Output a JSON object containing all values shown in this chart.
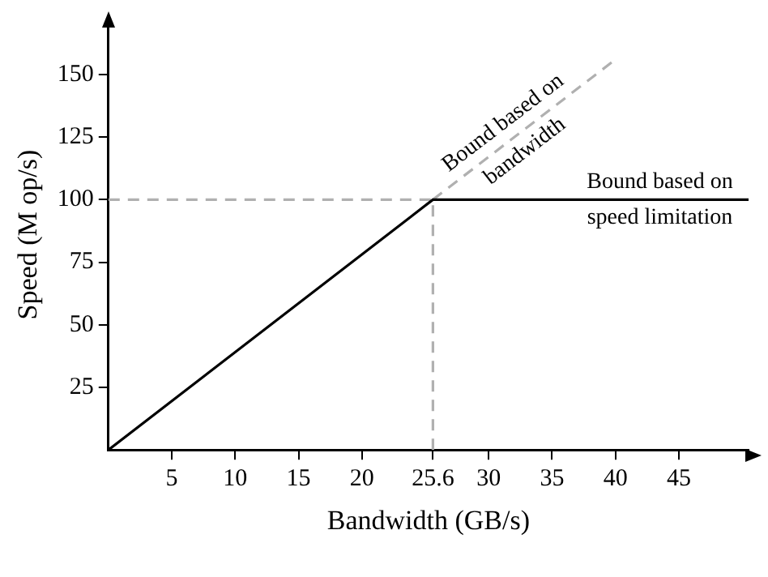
{
  "chart_data": {
    "type": "line",
    "xlabel": "Bandwidth (GB/s)",
    "ylabel": "Speed (M op/s)",
    "xlim": [
      0,
      50.5
    ],
    "ylim": [
      0,
      172
    ],
    "xticks": [
      5,
      10,
      15,
      20,
      25.6,
      30,
      35,
      40,
      45
    ],
    "yticks": [
      25,
      50,
      75,
      100,
      125,
      150
    ],
    "grid": false,
    "marker": "none",
    "series": [
      {
        "color": "#000000",
        "line_style": "solid",
        "x": [
          0,
          25.6,
          50.5
        ],
        "values": [
          0,
          100,
          100
        ]
      },
      {
        "color": "#b0b0b0",
        "line_style": "dashed",
        "x": [
          25.6,
          40
        ],
        "values": [
          100,
          156
        ]
      },
      {
        "color": "#b0b0b0",
        "line_style": "dashed",
        "x": [
          0,
          25.6
        ],
        "values": [
          100,
          100
        ]
      },
      {
        "color": "#b0b0b0",
        "line_style": "dashed",
        "x": [
          25.6,
          25.6
        ],
        "values": [
          0,
          100
        ]
      }
    ],
    "annotations": [
      {
        "text": "Bound based on\nbandwidth",
        "x": 32,
        "y": 125
      },
      {
        "text": "Bound based on\nspeed limitation",
        "x": 43.5,
        "y": 100
      }
    ]
  }
}
